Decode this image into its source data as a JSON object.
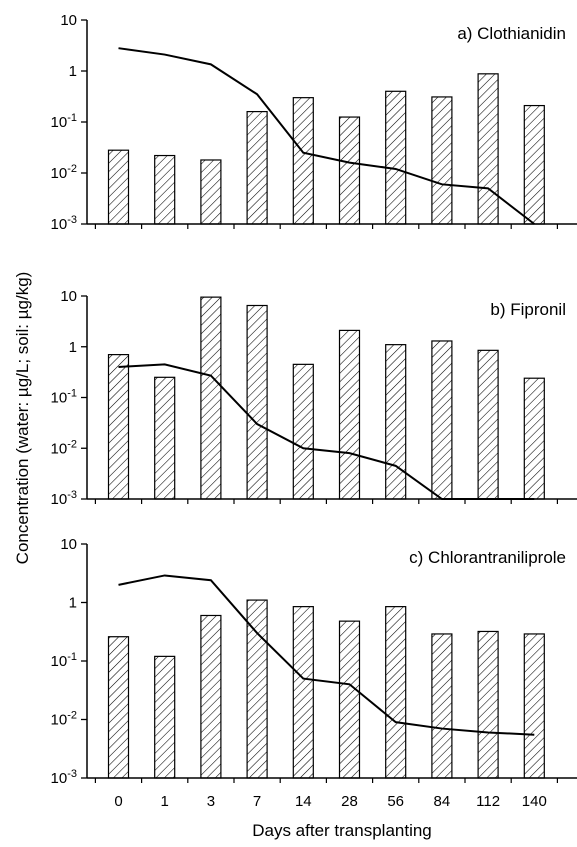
{
  "chart_data": [
    {
      "type": "bar",
      "title": "a) Clothianidin",
      "yscale": "log",
      "ylim": [
        0.001,
        10
      ],
      "categories": [
        "0",
        "1",
        "3",
        "7",
        "14",
        "28",
        "56",
        "84",
        "112",
        "140"
      ],
      "series": [
        {
          "kind": "bar",
          "pattern": "diagonal-hatch",
          "values": [
            0.028,
            0.022,
            0.018,
            0.16,
            0.3,
            0.125,
            0.4,
            0.31,
            0.88,
            0.21
          ]
        },
        {
          "kind": "line",
          "values": [
            2.8,
            2.1,
            1.35,
            0.35,
            0.025,
            0.016,
            0.012,
            0.006,
            0.005,
            0.001
          ]
        }
      ]
    },
    {
      "type": "bar",
      "title": "b) Fipronil",
      "yscale": "log",
      "ylim": [
        0.001,
        10
      ],
      "categories": [
        "0",
        "1",
        "3",
        "7",
        "14",
        "28",
        "56",
        "84",
        "112",
        "140"
      ],
      "series": [
        {
          "kind": "bar",
          "pattern": "diagonal-hatch",
          "values": [
            0.7,
            0.25,
            9.5,
            6.5,
            0.45,
            2.1,
            1.1,
            1.3,
            0.85,
            0.24
          ]
        },
        {
          "kind": "line",
          "values": [
            0.4,
            0.45,
            0.27,
            0.03,
            0.01,
            0.008,
            0.0045,
            0.001,
            0.001,
            0.001
          ]
        }
      ]
    },
    {
      "type": "bar",
      "title": "c) Chlorantraniliprole",
      "yscale": "log",
      "ylim": [
        0.001,
        10
      ],
      "categories": [
        "0",
        "1",
        "3",
        "7",
        "14",
        "28",
        "56",
        "84",
        "112",
        "140"
      ],
      "series": [
        {
          "kind": "bar",
          "pattern": "diagonal-hatch",
          "values": [
            0.26,
            0.12,
            0.6,
            1.1,
            0.85,
            0.48,
            0.85,
            0.29,
            0.32,
            0.29
          ]
        },
        {
          "kind": "line",
          "values": [
            2.0,
            2.9,
            2.4,
            0.3,
            0.05,
            0.04,
            0.009,
            0.007,
            0.006,
            0.0055
          ]
        }
      ]
    }
  ],
  "axes": {
    "ylabel": "Concentration (water: µg/L; soil:  µg/kg)",
    "xlabel": "Days after transplanting",
    "ytick_base": "10",
    "ytick_values": [
      0.001,
      0.01,
      0.1,
      1,
      10
    ],
    "ytick_labels": [
      {
        "base": "10",
        "exp": "-3"
      },
      {
        "base": "10",
        "exp": "-2"
      },
      {
        "base": "10",
        "exp": "-1"
      },
      {
        "base": "1",
        "exp": ""
      },
      {
        "base": "10",
        "exp": ""
      }
    ]
  },
  "colors": {
    "ink": "#000000",
    "background": "#ffffff"
  }
}
